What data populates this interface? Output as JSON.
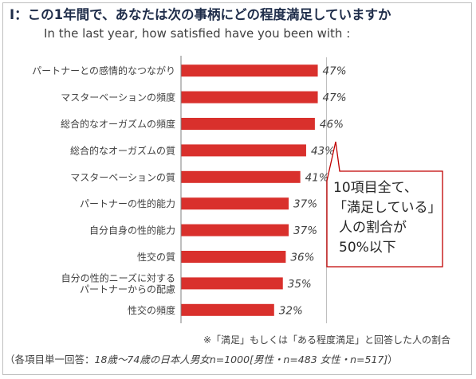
{
  "header": {
    "title": "Ⅰ：この1年間で、あなたは次の事柄にどの程度満足していますか",
    "subtitle": "In the last year, how satisfied have you been with :"
  },
  "chart_data": {
    "type": "bar",
    "orientation": "horizontal",
    "categories": [
      "パートナーとの感情的なつながり",
      "マスターベーションの頻度",
      "総合的なオーガズムの頻度",
      "総合的なオーガズムの質",
      "マスターベーションの質",
      "パートナーの性的能力",
      "自分自身の性的能力",
      "性交の質",
      [
        "自分の性的ニーズに対する",
        "パートナーからの配慮"
      ],
      "性交の頻度"
    ],
    "values": [
      47,
      47,
      46,
      43,
      41,
      37,
      37,
      36,
      35,
      32
    ],
    "value_labels": [
      "47%",
      "47%",
      "46%",
      "43%",
      "41%",
      "37%",
      "37%",
      "36%",
      "35%",
      "32%"
    ],
    "xlim": [
      0,
      100
    ],
    "reference_line": 50,
    "bar_color": "#d9302c"
  },
  "callout": {
    "lines": [
      "10項目全て、",
      "「満足している」",
      "人の割合が",
      "50%以下"
    ],
    "border_color": "#c00000"
  },
  "footer": {
    "note": "※「満足」もしくは「ある程度満足」と回答した人の割合",
    "basis_prefix": "（各項目単一回答：",
    "basis_italic": "18歳〜74歳の日本人男女n=1000[男性・n=483 女性・n=517]",
    "basis_suffix": "）"
  }
}
